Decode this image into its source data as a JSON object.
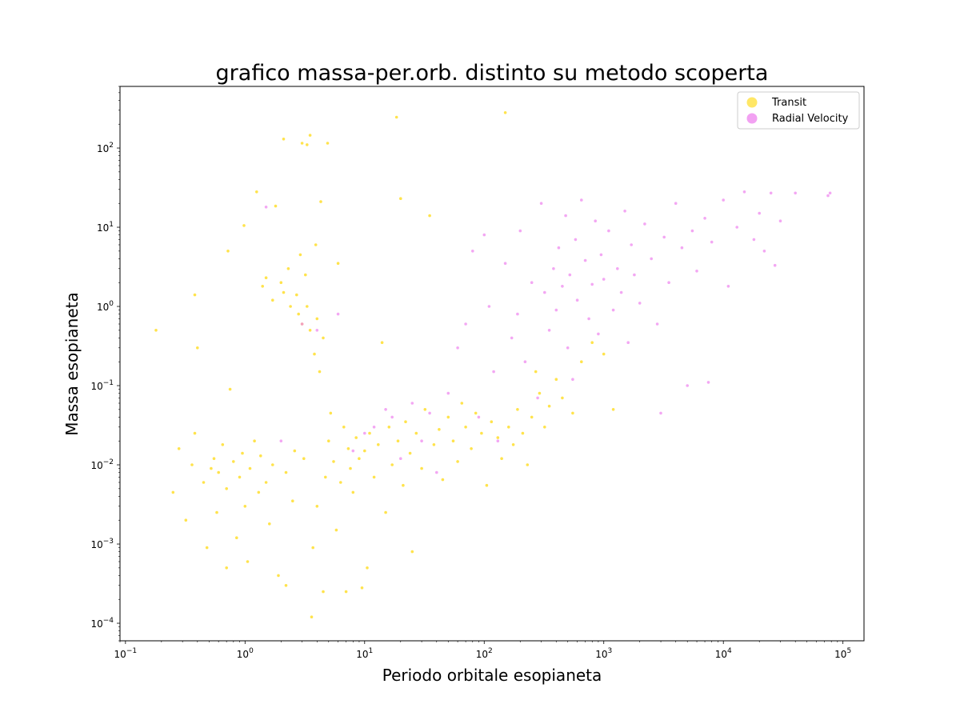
{
  "chart_data": {
    "type": "scatter",
    "title": "grafico massa-per.orb. distinto su metodo scoperta",
    "xlabel": "Periodo orbitale esopianeta",
    "ylabel": "Massa esopianeta",
    "x_scale": "log",
    "y_scale": "log",
    "xlim": [
      0.09,
      150000
    ],
    "ylim": [
      6e-05,
      600
    ],
    "x_ticks": [
      {
        "value": 0.1,
        "base": "10",
        "exp": "−1"
      },
      {
        "value": 1,
        "base": "10",
        "exp": "0"
      },
      {
        "value": 10,
        "base": "10",
        "exp": "1"
      },
      {
        "value": 100,
        "base": "10",
        "exp": "2"
      },
      {
        "value": 1000,
        "base": "10",
        "exp": "3"
      },
      {
        "value": 10000,
        "base": "10",
        "exp": "4"
      },
      {
        "value": 100000,
        "base": "10",
        "exp": "5"
      }
    ],
    "y_ticks": [
      {
        "value": 0.0001,
        "base": "10",
        "exp": "−4"
      },
      {
        "value": 0.001,
        "base": "10",
        "exp": "−3"
      },
      {
        "value": 0.01,
        "base": "10",
        "exp": "−2"
      },
      {
        "value": 0.1,
        "base": "10",
        "exp": "−1"
      },
      {
        "value": 1,
        "base": "10",
        "exp": "0"
      },
      {
        "value": 10,
        "base": "10",
        "exp": "1"
      },
      {
        "value": 100,
        "base": "10",
        "exp": "2"
      }
    ],
    "grid": false,
    "legend_position": "top-right",
    "series": [
      {
        "name": "Transit",
        "color": "#FFD700",
        "points": [
          [
            0.18,
            0.5
          ],
          [
            0.25,
            0.0045
          ],
          [
            0.28,
            0.016
          ],
          [
            0.32,
            0.002
          ],
          [
            0.36,
            0.01
          ],
          [
            0.38,
            0.025
          ],
          [
            0.4,
            0.3
          ],
          [
            0.38,
            1.4
          ],
          [
            0.45,
            0.006
          ],
          [
            0.48,
            0.0009
          ],
          [
            0.52,
            0.009
          ],
          [
            0.55,
            0.012
          ],
          [
            0.58,
            0.0025
          ],
          [
            0.6,
            0.008
          ],
          [
            0.65,
            0.018
          ],
          [
            0.7,
            0.0005
          ],
          [
            0.7,
            0.005
          ],
          [
            0.72,
            5.0
          ],
          [
            0.75,
            0.09
          ],
          [
            0.8,
            0.011
          ],
          [
            0.85,
            0.0012
          ],
          [
            0.9,
            0.007
          ],
          [
            0.95,
            0.014
          ],
          [
            0.98,
            10.5
          ],
          [
            1.0,
            0.003
          ],
          [
            1.05,
            0.0006
          ],
          [
            1.1,
            0.009
          ],
          [
            1.2,
            0.02
          ],
          [
            1.25,
            28.0
          ],
          [
            1.3,
            0.0045
          ],
          [
            1.35,
            0.013
          ],
          [
            1.4,
            1.8
          ],
          [
            1.5,
            2.3
          ],
          [
            1.5,
            0.006
          ],
          [
            1.6,
            0.0018
          ],
          [
            1.7,
            1.2
          ],
          [
            1.7,
            0.01
          ],
          [
            1.8,
            18.5
          ],
          [
            1.9,
            0.0004
          ],
          [
            2.0,
            2.0
          ],
          [
            2.1,
            130.0
          ],
          [
            2.1,
            1.5
          ],
          [
            2.2,
            0.008
          ],
          [
            2.2,
            0.0003
          ],
          [
            2.3,
            3.0
          ],
          [
            2.4,
            1.0
          ],
          [
            2.5,
            0.0035
          ],
          [
            2.6,
            0.015
          ],
          [
            2.7,
            1.4
          ],
          [
            2.8,
            0.8
          ],
          [
            2.9,
            4.5
          ],
          [
            3.0,
            115.0
          ],
          [
            3.0,
            0.6
          ],
          [
            3.1,
            0.012
          ],
          [
            3.2,
            2.5
          ],
          [
            3.3,
            110.0
          ],
          [
            3.3,
            1.0
          ],
          [
            3.5,
            145.0
          ],
          [
            3.5,
            0.5
          ],
          [
            3.6,
            0.00012
          ],
          [
            3.7,
            0.0009
          ],
          [
            3.8,
            0.25
          ],
          [
            3.9,
            6.0
          ],
          [
            4.0,
            0.7
          ],
          [
            4.0,
            0.003
          ],
          [
            4.2,
            0.15
          ],
          [
            4.3,
            21.0
          ],
          [
            4.5,
            0.00025
          ],
          [
            4.5,
            0.4
          ],
          [
            4.7,
            0.007
          ],
          [
            4.9,
            115.0
          ],
          [
            5.0,
            0.02
          ],
          [
            5.2,
            0.045
          ],
          [
            5.5,
            0.011
          ],
          [
            5.8,
            0.0015
          ],
          [
            6.0,
            3.5
          ],
          [
            6.3,
            0.006
          ],
          [
            6.7,
            0.03
          ],
          [
            7.0,
            0.00025
          ],
          [
            7.3,
            0.016
          ],
          [
            7.6,
            0.009
          ],
          [
            8.0,
            0.0045
          ],
          [
            8.5,
            0.022
          ],
          [
            9.0,
            0.012
          ],
          [
            9.5,
            0.00028
          ],
          [
            10.0,
            0.015
          ],
          [
            10.5,
            0.0005
          ],
          [
            11.0,
            0.025
          ],
          [
            12.0,
            0.007
          ],
          [
            13.0,
            0.018
          ],
          [
            14.0,
            0.35
          ],
          [
            15.0,
            0.0025
          ],
          [
            16.0,
            0.03
          ],
          [
            17.0,
            0.01
          ],
          [
            18.5,
            245.0
          ],
          [
            19.0,
            0.02
          ],
          [
            20.0,
            23.0
          ],
          [
            21.0,
            0.0055
          ],
          [
            22.0,
            0.035
          ],
          [
            24.0,
            0.014
          ],
          [
            25.0,
            0.0008
          ],
          [
            27.0,
            0.025
          ],
          [
            30.0,
            0.009
          ],
          [
            32.0,
            0.05
          ],
          [
            35.0,
            14.0
          ],
          [
            38.0,
            0.018
          ],
          [
            42.0,
            0.028
          ],
          [
            45.0,
            0.0065
          ],
          [
            50.0,
            0.04
          ],
          [
            55.0,
            0.02
          ],
          [
            60.0,
            0.011
          ],
          [
            65.0,
            0.06
          ],
          [
            70.0,
            0.03
          ],
          [
            78.0,
            0.016
          ],
          [
            85.0,
            0.045
          ],
          [
            95.0,
            0.025
          ],
          [
            105.0,
            0.0055
          ],
          [
            115.0,
            0.035
          ],
          [
            130.0,
            0.022
          ],
          [
            140.0,
            0.012
          ],
          [
            150.0,
            280.0
          ],
          [
            160.0,
            0.03
          ],
          [
            175.0,
            0.018
          ],
          [
            190.0,
            0.05
          ],
          [
            210.0,
            0.025
          ],
          [
            230.0,
            0.01
          ],
          [
            250.0,
            0.04
          ],
          [
            270.0,
            0.15
          ],
          [
            290.0,
            0.08
          ],
          [
            320.0,
            0.03
          ],
          [
            350.0,
            0.055
          ],
          [
            400.0,
            0.12
          ],
          [
            450.0,
            0.07
          ],
          [
            550.0,
            0.045
          ],
          [
            650.0,
            0.2
          ],
          [
            800.0,
            0.35
          ],
          [
            1000.0,
            0.25
          ],
          [
            1200.0,
            0.05
          ]
        ]
      },
      {
        "name": "Radial Velocity",
        "color": "#EE82EE",
        "points": [
          [
            1.5,
            18.0
          ],
          [
            2.0,
            0.02
          ],
          [
            3.0,
            0.6
          ],
          [
            4.0,
            0.5
          ],
          [
            6.0,
            0.8
          ],
          [
            8.0,
            0.015
          ],
          [
            10.0,
            0.025
          ],
          [
            12.0,
            0.03
          ],
          [
            15.0,
            0.05
          ],
          [
            17.0,
            0.04
          ],
          [
            20.0,
            0.012
          ],
          [
            25.0,
            0.06
          ],
          [
            30.0,
            0.02
          ],
          [
            35.0,
            0.045
          ],
          [
            40.0,
            0.008
          ],
          [
            50.0,
            0.08
          ],
          [
            60.0,
            0.3
          ],
          [
            70.0,
            0.6
          ],
          [
            80.0,
            5.0
          ],
          [
            90.0,
            0.04
          ],
          [
            100.0,
            8.0
          ],
          [
            110.0,
            1.0
          ],
          [
            120.0,
            0.15
          ],
          [
            130.0,
            0.02
          ],
          [
            150.0,
            3.5
          ],
          [
            170.0,
            0.4
          ],
          [
            190.0,
            0.8
          ],
          [
            200.0,
            9.0
          ],
          [
            220.0,
            0.2
          ],
          [
            250.0,
            2.0
          ],
          [
            280.0,
            0.07
          ],
          [
            300.0,
            20.0
          ],
          [
            320.0,
            1.5
          ],
          [
            350.0,
            0.5
          ],
          [
            380.0,
            3.0
          ],
          [
            400.0,
            0.9
          ],
          [
            420.0,
            5.5
          ],
          [
            450.0,
            1.8
          ],
          [
            480.0,
            14.0
          ],
          [
            500.0,
            0.3
          ],
          [
            520.0,
            2.5
          ],
          [
            550.0,
            0.12
          ],
          [
            580.0,
            7.0
          ],
          [
            600.0,
            1.2
          ],
          [
            650.0,
            22.0
          ],
          [
            700.0,
            3.8
          ],
          [
            750.0,
            0.7
          ],
          [
            800.0,
            1.9
          ],
          [
            850.0,
            12.0
          ],
          [
            900.0,
            0.45
          ],
          [
            950.0,
            4.5
          ],
          [
            1000.0,
            2.2
          ],
          [
            1100.0,
            9.0
          ],
          [
            1200.0,
            0.9
          ],
          [
            1300.0,
            3.0
          ],
          [
            1400.0,
            1.5
          ],
          [
            1500.0,
            16.0
          ],
          [
            1600.0,
            0.35
          ],
          [
            1700.0,
            6.0
          ],
          [
            1800.0,
            2.5
          ],
          [
            2000.0,
            1.1
          ],
          [
            2200.0,
            11.0
          ],
          [
            2500.0,
            4.0
          ],
          [
            2800.0,
            0.6
          ],
          [
            3000.0,
            0.045
          ],
          [
            3200.0,
            7.5
          ],
          [
            3500.0,
            2.0
          ],
          [
            4000.0,
            20.0
          ],
          [
            4500.0,
            5.5
          ],
          [
            5000.0,
            0.1
          ],
          [
            5500.0,
            9.0
          ],
          [
            6000.0,
            2.8
          ],
          [
            7000.0,
            13.0
          ],
          [
            7500.0,
            0.11
          ],
          [
            8000.0,
            6.5
          ],
          [
            10000.0,
            22.0
          ],
          [
            11000.0,
            1.8
          ],
          [
            13000.0,
            10.0
          ],
          [
            15000.0,
            28.0
          ],
          [
            18000.0,
            7.0
          ],
          [
            20000.0,
            15.0
          ],
          [
            22000.0,
            5.0
          ],
          [
            25000.0,
            27.0
          ],
          [
            27000.0,
            3.3
          ],
          [
            30000.0,
            12.0
          ],
          [
            40000.0,
            27.0
          ],
          [
            75000.0,
            25.0
          ],
          [
            78000.0,
            27.0
          ]
        ]
      }
    ]
  }
}
